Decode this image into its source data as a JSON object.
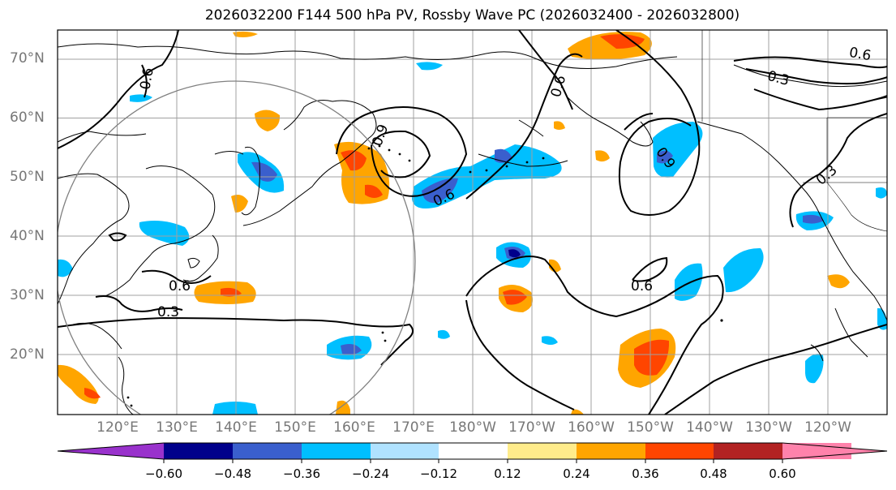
{
  "title": "2026032200 F144 500 hPa PV, Rossby Wave PC (2026032400 - 2026032800)",
  "lat_labels": [
    "70°N",
    "60°N",
    "50°N",
    "40°N",
    "30°N",
    "20°N"
  ],
  "lon_labels": [
    "120°E",
    "130°E",
    "140°E",
    "150°E",
    "160°E",
    "170°E",
    "180°W",
    "170°W",
    "160°W",
    "150°W",
    "140°W",
    "130°W",
    "120°W"
  ],
  "contour_labels": [
    "0.6",
    "0.6",
    "0.3",
    "0.9",
    "0.6",
    "0.6",
    "0.3",
    "0.6",
    "0.3",
    "0.9",
    "0.6",
    "0.3"
  ],
  "colorbar": {
    "ticks": [
      "−0.60",
      "−0.48",
      "−0.36",
      "−0.24",
      "−0.12",
      "0.12",
      "0.24",
      "0.36",
      "0.48",
      "0.60"
    ],
    "colors": [
      "#9932cc",
      "#00008b",
      "#3a5fcd",
      "#00bfff",
      "#b0e2ff",
      "#ffffff",
      "#ffec8b",
      "#ffa500",
      "#ff4500",
      "#b22222",
      "#ff82ab"
    ]
  }
}
